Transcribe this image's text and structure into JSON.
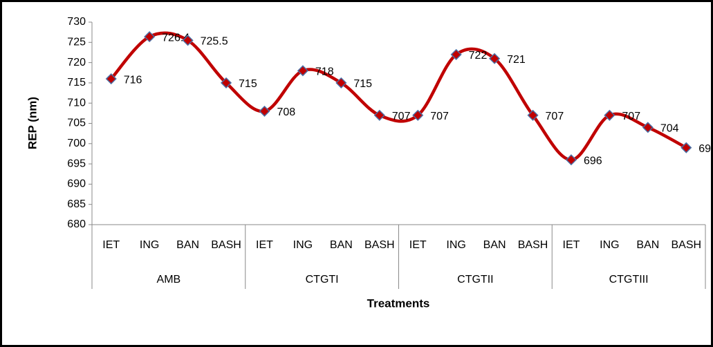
{
  "chart_data": {
    "type": "line",
    "y_label": "REP (nm)",
    "x_label": "Treatments",
    "categories": [
      "IET",
      "ING",
      "BAN",
      "BASH",
      "IET",
      "ING",
      "BAN",
      "BASH",
      "IET",
      "ING",
      "BAN",
      "BASH",
      "IET",
      "ING",
      "BAN",
      "BASH"
    ],
    "groups": [
      "AMB",
      "CTGTI",
      "CTGTII",
      "CTGTIII"
    ],
    "series": [
      {
        "name": "REP",
        "color": "#c00000",
        "marker_color": "#c00000",
        "values": [
          716,
          726.4,
          725.5,
          715,
          708,
          718,
          715,
          707,
          707,
          722,
          721,
          707,
          696,
          707,
          704,
          699
        ]
      }
    ],
    "ylim": [
      680,
      730
    ],
    "yticks": [
      680,
      685,
      690,
      695,
      700,
      705,
      710,
      715,
      720,
      725,
      730
    ],
    "grid": false,
    "smooth": true,
    "data_labels": true
  }
}
